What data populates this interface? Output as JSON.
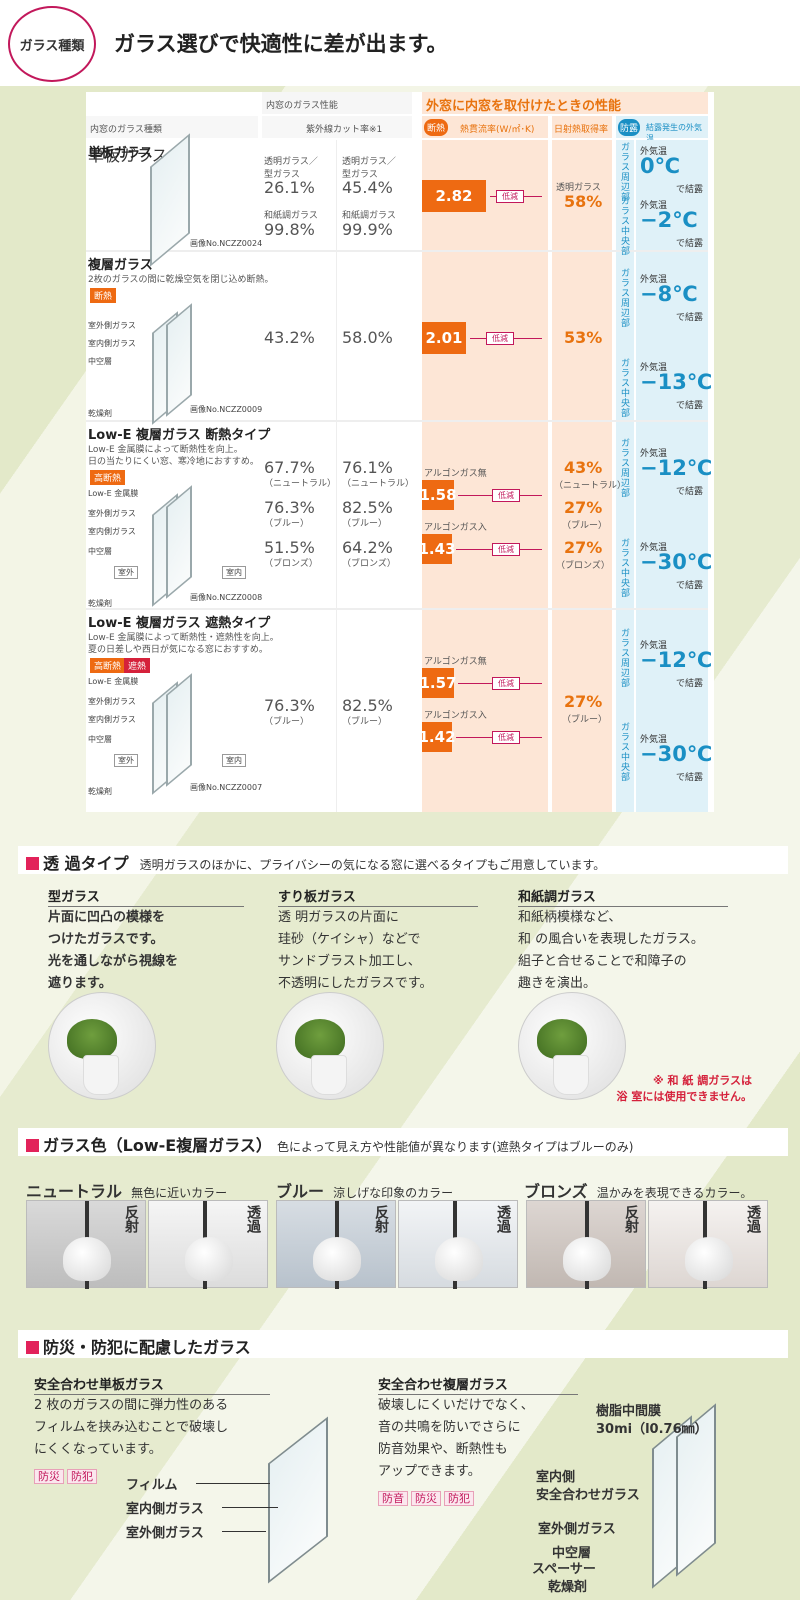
{
  "header": {
    "badge": "ガラス種類",
    "title": "ガラス選びで快適性に差が出ます。"
  },
  "table": {
    "col_inner_perf": "内窓のガラス性能",
    "col_outer_perf": "外窓に内窓を取付けたときの性能",
    "col_type": "内窓のガラス種類",
    "col_uv": "紫外線カット率※1",
    "col_dannetsu": "断熱",
    "col_heat": "熱貫流率(W/㎡･K)",
    "col_solar": "日射熱取得率",
    "col_boro": "防露",
    "col_temp": "結露発生の外気温",
    "reduce": "低減",
    "edge": "ガラス周辺部",
    "center": "ガラス中央部",
    "gaikion": "外気温",
    "ketsuro": "で結露",
    "rows": [
      {
        "name": "単板ガラス",
        "img_no": "画像No.NCZZ0024",
        "uv": [
          {
            "l": "透明ガラス／型ガラス",
            "v": "26.1%"
          },
          {
            "l": "透明ガラス／型ガラス",
            "v": "45.4%"
          },
          {
            "l": "和紙調ガラス",
            "v": "99.8%"
          },
          {
            "l": "和紙調ガラス",
            "v": "99.9%"
          }
        ],
        "heat": "2.82",
        "solar_label": "透明ガラス",
        "solar": "58%",
        "t_edge": "0℃",
        "t_center": "−2℃"
      },
      {
        "name": "複層ガラス",
        "desc": "2枚のガラスの間に乾燥空気を閉じ込め断熱。",
        "badge": "断熱",
        "img_no": "画像No.NCZZ0009",
        "labels": [
          "室外側ガラス",
          "室内側ガラス",
          "中空層",
          "乾燥剤"
        ],
        "uv1": "43.2%",
        "uv2": "58.0%",
        "heat": "2.01",
        "solar": "53%",
        "t_edge": "−8℃",
        "t_center": "−13℃"
      },
      {
        "name": "Low-E 複層ガラス 断熱タイプ",
        "desc1": "Low-E 金属膜によって断熱性を向上。",
        "desc2": "日の当たりにくい窓、寒冷地におすすめ。",
        "badge": "高断熱",
        "img_no": "画像No.NCZZ0008",
        "labels": [
          "Low-E 金属膜",
          "室外側ガラス",
          "室内側ガラス",
          "中空層",
          "乾燥剤"
        ],
        "outside": "室外",
        "inside": "室内",
        "uv": [
          {
            "v1": "67.7%",
            "v2": "76.1%",
            "s": "（ニュートラル）"
          },
          {
            "v1": "76.3%",
            "v2": "82.5%",
            "s": "（ブルー）"
          },
          {
            "v1": "51.5%",
            "v2": "64.2%",
            "s": "（ブロンズ）"
          }
        ],
        "gas_no": "アルゴンガス無",
        "gas_yes": "アルゴンガス入",
        "heat1": "1.58",
        "heat2": "1.43",
        "solar": [
          {
            "v": "43%",
            "s": "（ニュートラル）"
          },
          {
            "v": "27%",
            "s": "（ブルー）"
          },
          {
            "v": "27%",
            "s": "（ブロンズ）"
          }
        ],
        "t_edge": "−12℃",
        "t_center": "−30℃"
      },
      {
        "name": "Low-E 複層ガラス 遮熱タイプ",
        "desc1": "Low-E 金属膜によって断熱性・遮熱性を向上。",
        "desc2": "夏の日差しや西日が気になる窓におすすめ。",
        "badge1": "高断熱",
        "badge2": "遮熱",
        "img_no": "画像No.NCZZ0007",
        "labels": [
          "Low-E 金属膜",
          "室外側ガラス",
          "室内側ガラス",
          "中空層",
          "乾燥剤"
        ],
        "outside": "室外",
        "inside": "室内",
        "uv1": "76.3%",
        "uv2": "82.5%",
        "uv_s": "（ブルー）",
        "gas_no": "アルゴンガス無",
        "gas_yes": "アルゴンガス入",
        "heat1": "1.57",
        "heat2": "1.42",
        "solar": "27%",
        "solar_s": "（ブルー）",
        "t_edge": "−12℃",
        "t_center": "−30℃"
      }
    ]
  },
  "transmit": {
    "title": "透 過タイプ",
    "subtitle": "透明ガラスのほかに、プライバシーの気になる窓に選べるタイプもご用意しています。",
    "items": [
      {
        "title": "型ガラス",
        "lines": [
          "片面に凹凸の模様を",
          "つけたガラスです。",
          "光を通しながら視線を",
          "遮ります。"
        ]
      },
      {
        "title": "すり板ガラス",
        "lines": [
          "透 明ガラスの片面に",
          "珪砂（ケイシャ）などで",
          "サンドブラスト加工し、",
          "不透明にしたガラスです。"
        ]
      },
      {
        "title": "和紙調ガラス",
        "lines": [
          "和紙柄模様など、",
          "和 の風合いを表現したガラス。",
          "組子と合せることで和障子の",
          "趣きを演出。"
        ]
      }
    ],
    "note1": "※ 和 紙 調ガラスは",
    "note2": "浴 室には使用できません。"
  },
  "colors": {
    "title": "ガラス色（Low-E複層ガラス）",
    "subtitle": "色によって見え方や性能値が異なります(遮熱タイプはブルーのみ)",
    "reflect": "反射",
    "transmit": "透過",
    "items": [
      {
        "name": "ニュートラル",
        "desc": "無色に近いカラー"
      },
      {
        "name": "ブルー",
        "desc": "涼しげな印象のカラー"
      },
      {
        "name": "ブロンズ",
        "desc": "温かみを表現できるカラー。"
      }
    ]
  },
  "safety": {
    "title": "防災・防犯に配慮したガラス",
    "single": {
      "title": "安全合わせ単板ガラス",
      "lines": [
        "2 枚のガラスの間に弾力性のある",
        "フィルムを挟み込むことで破壊し",
        "にくくなっています。"
      ],
      "tags": [
        "防災",
        "防犯"
      ],
      "labels": [
        "フィルム",
        "室内側ガラス",
        "室外側ガラス"
      ]
    },
    "double": {
      "title": "安全合わせ複層ガラス",
      "lines": [
        "破壊しにくいだけでなく、",
        "音の共鳴を防いでさらに",
        "防音効果や、断熱性も",
        "アップできます。"
      ],
      "tags": [
        "防音",
        "防災",
        "防犯"
      ],
      "labels": [
        "樹脂中間膜",
        "30mi（l0.76㎜）",
        "室内側",
        "安全合わせガラス",
        "室外側ガラス",
        "中空層",
        "スペーサー",
        "乾燥剤"
      ]
    }
  }
}
